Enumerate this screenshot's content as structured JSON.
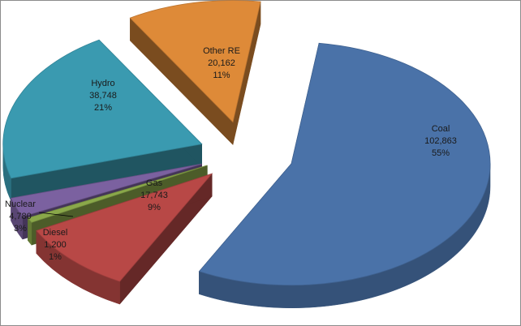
{
  "chart_data": {
    "type": "pie",
    "style": "3d-exploded",
    "title": "",
    "legend": "none",
    "slices": [
      {
        "label": "Coal",
        "value": 102863,
        "value_text": "102,863",
        "percent_text": "55%",
        "color": "#4a72a8"
      },
      {
        "label": "Gas",
        "value": 17743,
        "value_text": "17,743",
        "percent_text": "9%",
        "color": "#b84846"
      },
      {
        "label": "Diesel",
        "value": 1200,
        "value_text": "1,200",
        "percent_text": "1%",
        "color": "#8aa84a"
      },
      {
        "label": "Nuclear",
        "value": 4780,
        "value_text": "4,780",
        "percent_text": "3%",
        "color": "#7b61a0"
      },
      {
        "label": "Hydro",
        "value": 38748,
        "value_text": "38,748",
        "percent_text": "21%",
        "color": "#3a9ab0"
      },
      {
        "label": "Other RE",
        "value": 20162,
        "value_text": "20,162",
        "percent_text": "11%",
        "color": "#de8a38"
      }
    ]
  }
}
